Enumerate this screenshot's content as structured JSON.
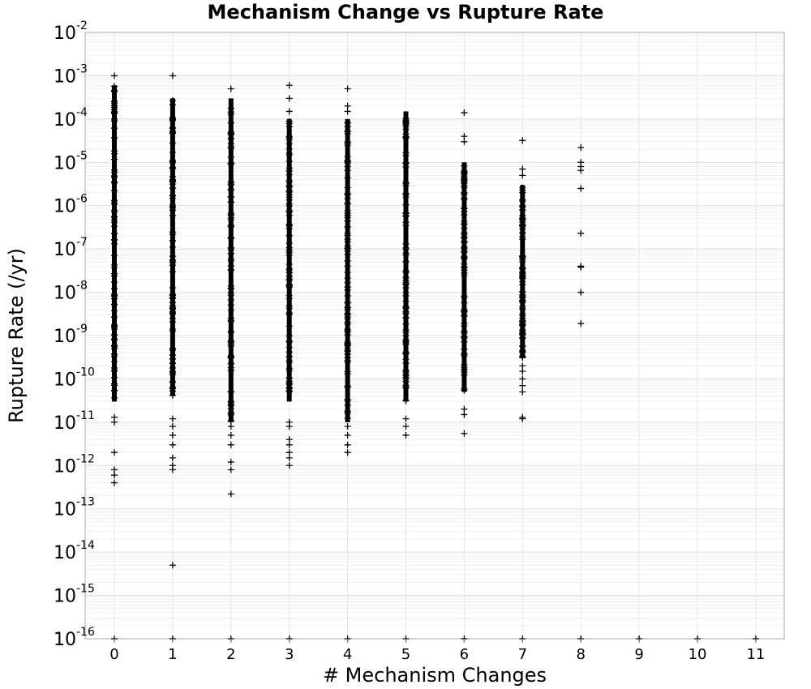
{
  "chart_data": {
    "type": "scatter",
    "title": "Mechanism Change vs Rupture Rate",
    "xlabel": "# Mechanism Changes",
    "ylabel": "Rupture Rate (/yr)",
    "xlim": [
      -0.5,
      11.5
    ],
    "ylim": [
      1e-16,
      0.01
    ],
    "y_scale": "log",
    "x_ticks": [
      "0",
      "1",
      "2",
      "3",
      "4",
      "5",
      "6",
      "7",
      "8",
      "9",
      "10",
      "11"
    ],
    "y_ticks": [
      {
        "base": "10",
        "exp": "-2"
      },
      {
        "base": "10",
        "exp": "-3"
      },
      {
        "base": "10",
        "exp": "-4"
      },
      {
        "base": "10",
        "exp": "-5"
      },
      {
        "base": "10",
        "exp": "-6"
      },
      {
        "base": "10",
        "exp": "-7"
      },
      {
        "base": "10",
        "exp": "-8"
      },
      {
        "base": "10",
        "exp": "-9"
      },
      {
        "base": "10",
        "exp": "-10"
      },
      {
        "base": "10",
        "exp": "-11"
      },
      {
        "base": "10",
        "exp": "-12"
      },
      {
        "base": "10",
        "exp": "-13"
      },
      {
        "base": "10",
        "exp": "-14"
      },
      {
        "base": "10",
        "exp": "-15"
      },
      {
        "base": "10",
        "exp": "-16"
      }
    ],
    "grid": true,
    "marker": "plus",
    "marker_color": "#000000",
    "series": [
      {
        "columns": [
          {
            "x": 0,
            "dense_min": 3e-11,
            "dense_max": 0.0006,
            "outliers": [
              0.001,
              1.3e-11,
              1e-11,
              2e-12,
              8e-13,
              6e-13,
              4e-13,
              1e-16
            ]
          },
          {
            "x": 1,
            "dense_min": 4e-11,
            "dense_max": 0.0003,
            "outliers": [
              0.001,
              1.2e-11,
              8e-12,
              5e-12,
              3e-12,
              1.5e-12,
              1e-12,
              8e-13,
              5e-15,
              1e-16
            ]
          },
          {
            "x": 2,
            "dense_min": 1e-11,
            "dense_max": 0.0003,
            "outliers": [
              0.0005,
              8e-12,
              5e-12,
              3e-12,
              1.2e-12,
              8e-13,
              2.2e-13,
              1e-16
            ]
          },
          {
            "x": 3,
            "dense_min": 3e-11,
            "dense_max": 0.0001,
            "outliers": [
              0.0006,
              0.0003,
              0.00015,
              1e-11,
              8e-12,
              4e-12,
              3e-12,
              2e-12,
              1.5e-12,
              1e-12,
              1e-16
            ]
          },
          {
            "x": 4,
            "dense_min": 1e-11,
            "dense_max": 0.0001,
            "outliers": [
              0.0005,
              0.0002,
              0.00015,
              8e-12,
              5e-12,
              3e-12,
              2e-12,
              1e-16
            ]
          },
          {
            "x": 5,
            "dense_min": 3e-11,
            "dense_max": 0.00015,
            "outliers": [
              1.2e-11,
              8e-12,
              5e-12,
              1e-16
            ]
          },
          {
            "x": 6,
            "dense_min": 5e-11,
            "dense_max": 1e-05,
            "outliers": [
              0.00014,
              4e-05,
              3e-05,
              2e-11,
              1.5e-11,
              5.5e-12,
              1e-16
            ]
          },
          {
            "x": 7,
            "dense_min": 3e-10,
            "dense_max": 3e-06,
            "outliers": [
              3.2e-05,
              7e-06,
              5e-06,
              2e-10,
              1.5e-10,
              1e-10,
              7e-11,
              5e-11,
              1.3e-11,
              1.2e-11,
              1e-16
            ]
          },
          {
            "x": 8,
            "points": [
              2.2e-05,
              1e-05,
              8e-06,
              6.5e-06,
              2.5e-06,
              2.3e-07,
              4e-08,
              3.8e-08,
              1e-08,
              1.9e-09,
              1e-16
            ]
          },
          {
            "x": 9,
            "points": [
              1e-16
            ]
          },
          {
            "x": 10,
            "points": [
              1e-16
            ]
          },
          {
            "x": 11,
            "points": [
              1e-16
            ]
          }
        ]
      }
    ]
  }
}
